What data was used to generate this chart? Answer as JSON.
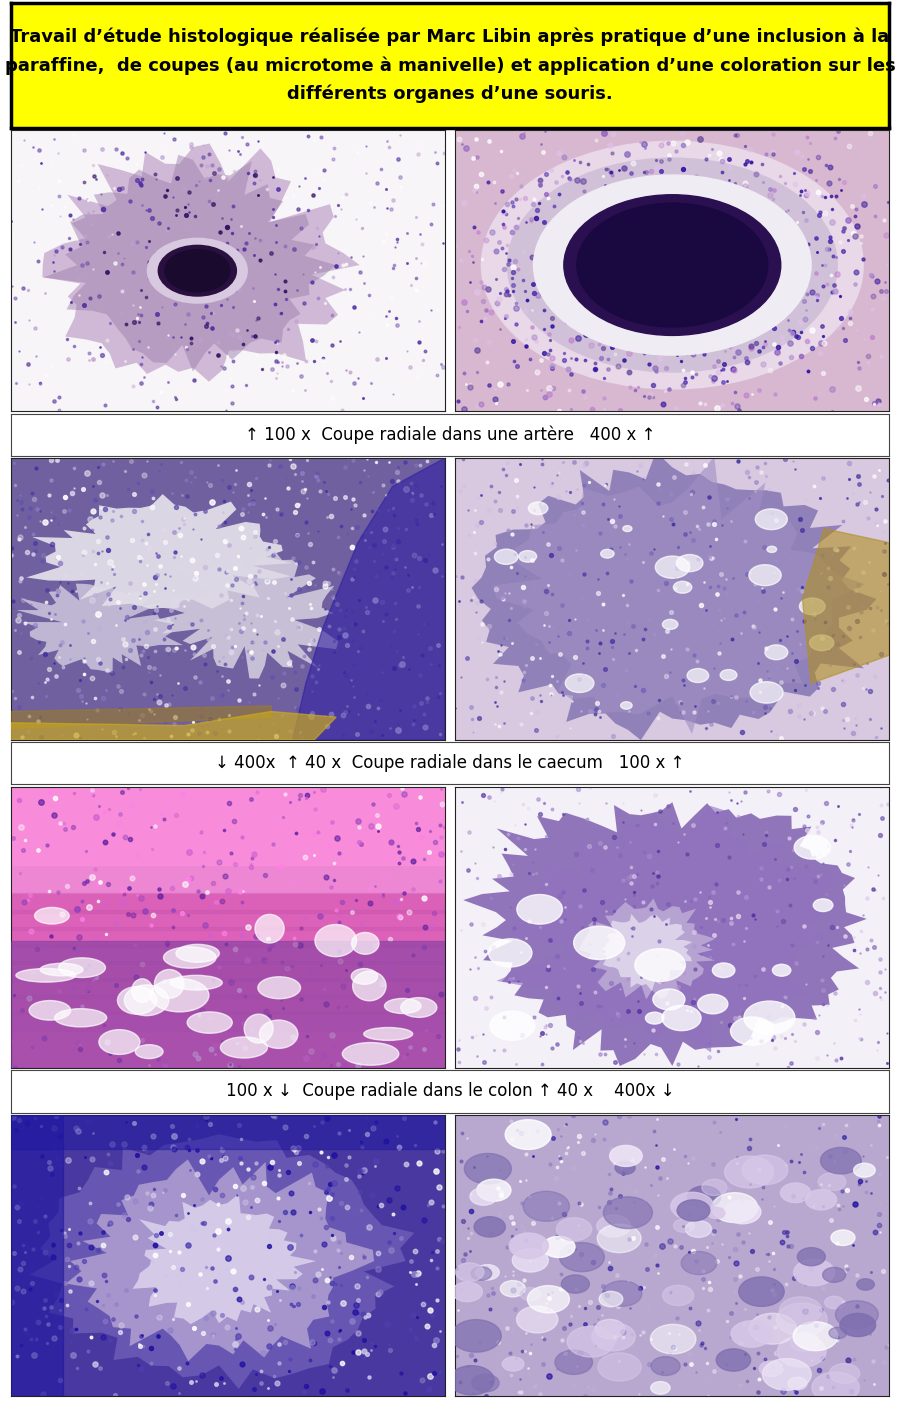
{
  "title_text": "Travail d’étude histologique réalisée par Marc Libin après pratique d’une inclusion à la\nparaffine,  de coupes (au microtome à manivelle) et application d’une coloration sur les\ndifférents organes d’une souris.",
  "title_bg": "#ffff00",
  "title_border": "#000000",
  "caption1": "↑ 100 x  Coupe radiale dans une artère   400 x ↑",
  "caption2": "↓ 400x  ↑ 40 x  Coupe radiale dans le caecum   100 x ↑",
  "caption3": "100 x ↓  Coupe radiale dans le colon ↑ 40 x    400x ↓",
  "bg_color": "#ffffff",
  "title_fontsize": 13,
  "caption_fontsize": 12,
  "row1_left_bg": "#f8f4f8",
  "row1_right_bg": "#e8c8e0",
  "row2_left_bg": "#a090b8",
  "row2_right_bg": "#b0a0c0",
  "row3_left_bg": "#e070c0",
  "row3_right_bg": "#c8b0d0",
  "row4_left_bg": "#5040a0",
  "row4_right_bg": "#a090c8"
}
